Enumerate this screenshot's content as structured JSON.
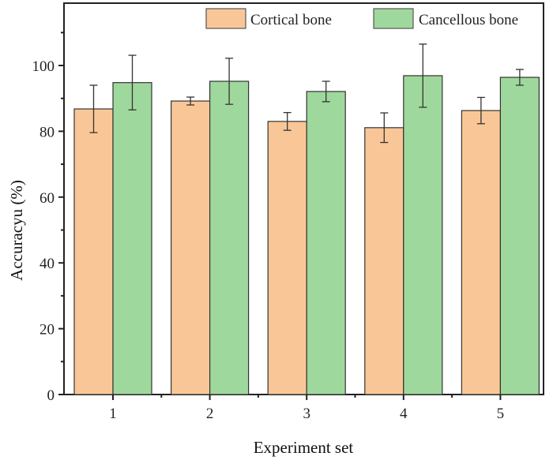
{
  "chart_data": {
    "type": "bar",
    "title": "",
    "xlabel": "Experiment set",
    "ylabel": "Accuracyu (%)",
    "categories": [
      "1",
      "2",
      "3",
      "4",
      "5"
    ],
    "ylim": [
      0,
      117
    ],
    "yticks": [
      0,
      20,
      40,
      60,
      80,
      100
    ],
    "yticks_minor": [
      10,
      30,
      50,
      70,
      90,
      110
    ],
    "grid": false,
    "legend_position": "top-right",
    "series": [
      {
        "name": "Cortical bone",
        "color": "#f9c797",
        "values": [
          86.8,
          89.2,
          83.0,
          81.1,
          86.3
        ],
        "errors": [
          7.2,
          1.2,
          2.7,
          4.5,
          4.0
        ]
      },
      {
        "name": "Cancellous bone",
        "color": "#9fd89c",
        "values": [
          94.8,
          95.2,
          92.1,
          96.9,
          96.4
        ],
        "errors": [
          8.3,
          7.0,
          3.1,
          9.6,
          2.4
        ]
      }
    ]
  }
}
